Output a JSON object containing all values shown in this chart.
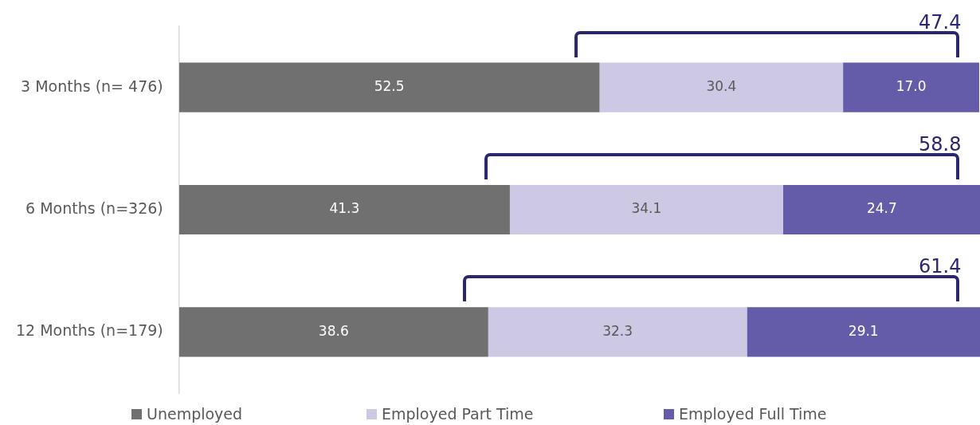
{
  "chart_data": {
    "type": "bar",
    "orientation": "horizontal",
    "stacked": true,
    "categories": [
      "3 Months (n= 476)",
      "6 Months (n=326)",
      "12 Months (n=179)"
    ],
    "series": [
      {
        "name": "Unemployed",
        "color": "#707070",
        "values": [
          52.5,
          41.3,
          38.6
        ],
        "value_labels": [
          "52.5",
          "41.3",
          "38.6"
        ]
      },
      {
        "name": "Employed Part Time",
        "color": "#cdc8e3",
        "values": [
          30.4,
          34.1,
          32.3
        ],
        "value_labels": [
          "30.4",
          "34.1",
          "32.3"
        ]
      },
      {
        "name": "Employed Full Time",
        "color": "#655ca9",
        "values": [
          17.0,
          24.7,
          29.1
        ],
        "value_labels": [
          "17.0",
          "24.7",
          "29.1"
        ]
      }
    ],
    "xlim": [
      0,
      100
    ],
    "tick_labels": "y",
    "grid": false,
    "legend": "bottom",
    "annotations": [
      "47.4",
      "58.8",
      "61.4"
    ]
  }
}
